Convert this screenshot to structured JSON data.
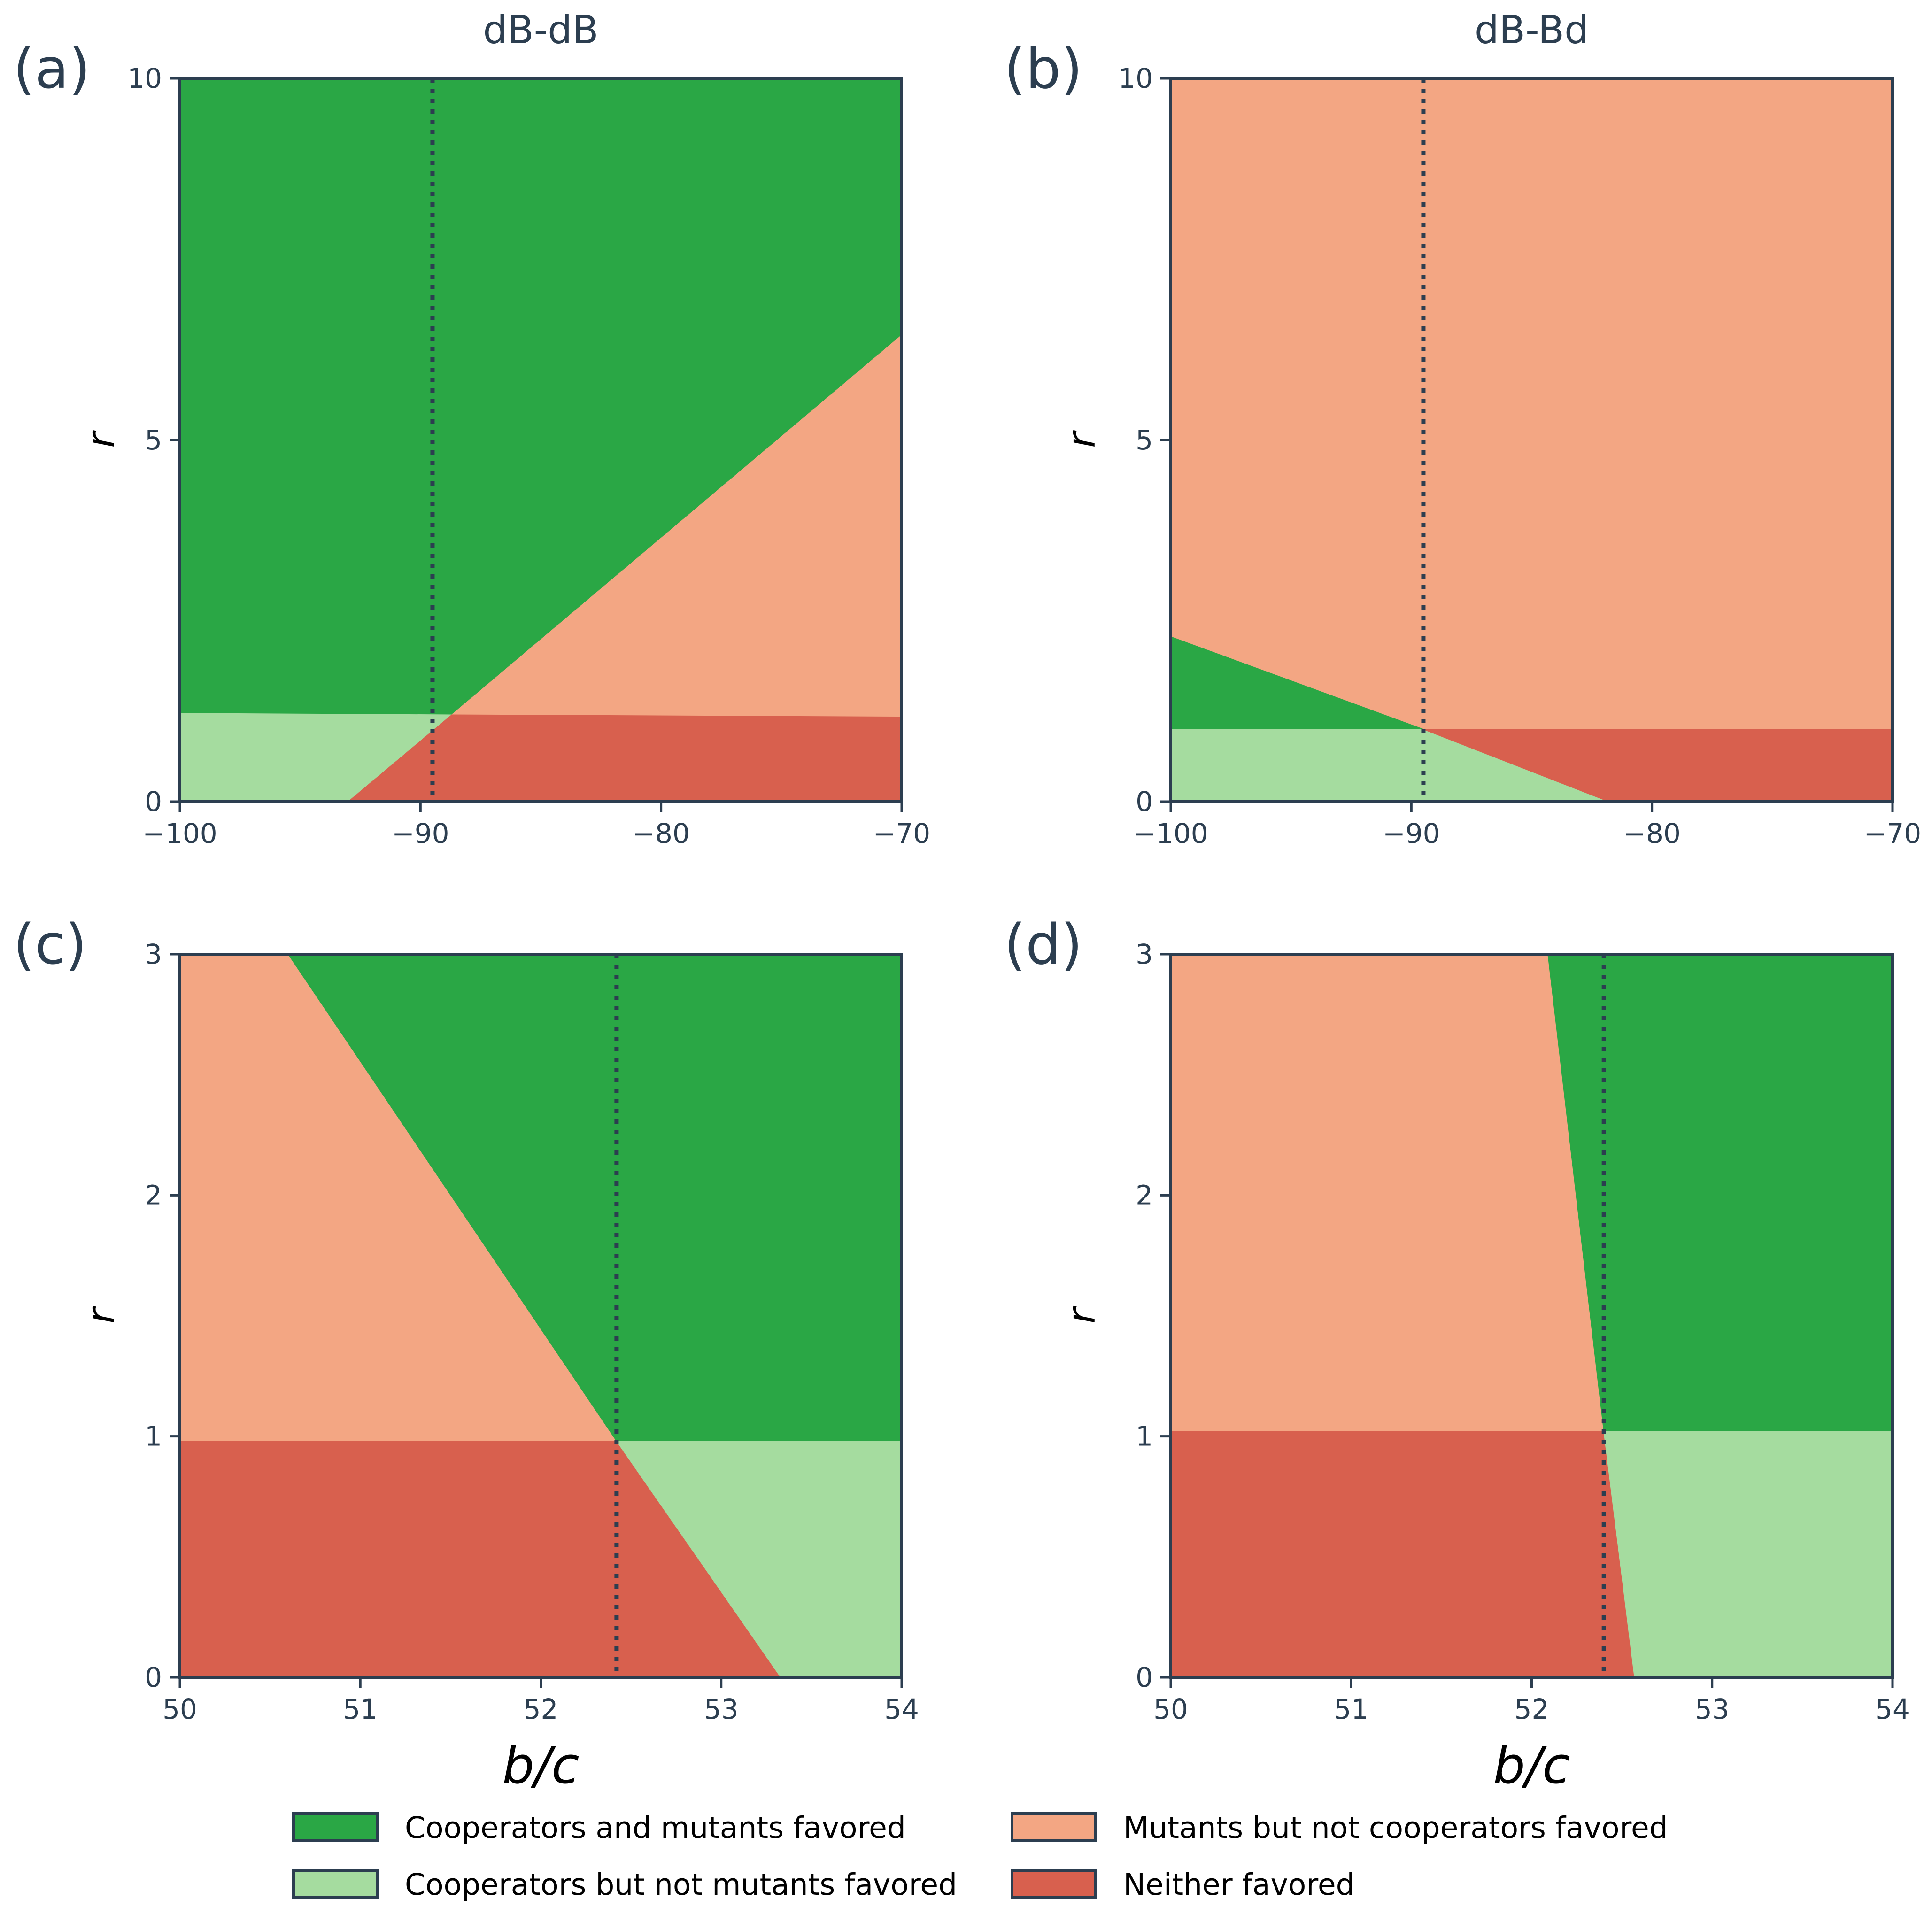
{
  "colors": {
    "both": "#2aa745",
    "coop_only": "#a5dc9f",
    "mut_only": "#f3a683",
    "neither": "#d8604e",
    "axis": "#2c3e50",
    "dotted": "#2c3e50"
  },
  "chart_data": [
    {
      "type": "region",
      "panel_label": "(a)",
      "title": "dB-dB",
      "xlabel": "",
      "ylabel": "r",
      "xlim": [
        -100,
        -70
      ],
      "ylim": [
        0,
        10
      ],
      "xticks": [
        -100,
        -90,
        -80,
        -70
      ],
      "xtick_labels": [
        "−100",
        "−90",
        "−80",
        "−70"
      ],
      "yticks": [
        0,
        5,
        10
      ],
      "ytick_labels": [
        "0",
        "5",
        "10"
      ],
      "vline_x": -89.5,
      "regions": [
        {
          "category": "both",
          "polygon": [
            [
              -100,
              10
            ],
            [
              -70,
              10
            ],
            [
              -70,
              6.45
            ],
            [
              -88.7,
              1.2
            ],
            [
              -100,
              1.22
            ]
          ]
        },
        {
          "category": "mut_only",
          "polygon": [
            [
              -88.7,
              1.2
            ],
            [
              -70,
              6.45
            ],
            [
              -70,
              1.17
            ]
          ]
        },
        {
          "category": "coop_only",
          "polygon": [
            [
              -100,
              1.22
            ],
            [
              -88.7,
              1.2
            ],
            [
              -93,
              0
            ],
            [
              -100,
              0
            ]
          ]
        },
        {
          "category": "neither",
          "polygon": [
            [
              -93,
              0
            ],
            [
              -88.7,
              1.2
            ],
            [
              -70,
              1.17
            ],
            [
              -70,
              0
            ]
          ]
        }
      ]
    },
    {
      "type": "region",
      "panel_label": "(b)",
      "title": "dB-Bd",
      "xlabel": "",
      "ylabel": "r",
      "xlim": [
        -100,
        -70
      ],
      "ylim": [
        0,
        10
      ],
      "xticks": [
        -100,
        -90,
        -80,
        -70
      ],
      "xtick_labels": [
        "−100",
        "−90",
        "−80",
        "−70"
      ],
      "yticks": [
        0,
        5,
        10
      ],
      "ytick_labels": [
        "0",
        "5",
        "10"
      ],
      "vline_x": -89.5,
      "regions": [
        {
          "category": "mut_only",
          "polygon": [
            [
              -100,
              10
            ],
            [
              -70,
              10
            ],
            [
              -70,
              1.0
            ],
            [
              -89.5,
              1.0
            ],
            [
              -100,
              2.28
            ]
          ]
        },
        {
          "category": "both",
          "polygon": [
            [
              -100,
              2.28
            ],
            [
              -89.5,
              1.0
            ],
            [
              -100,
              1.0
            ]
          ]
        },
        {
          "category": "coop_only",
          "polygon": [
            [
              -100,
              1.0
            ],
            [
              -89.5,
              1.0
            ],
            [
              -81.8,
              0
            ],
            [
              -100,
              0
            ]
          ]
        },
        {
          "category": "neither",
          "polygon": [
            [
              -89.5,
              1.0
            ],
            [
              -70,
              1.0
            ],
            [
              -70,
              0
            ],
            [
              -81.8,
              0
            ]
          ]
        }
      ]
    },
    {
      "type": "region",
      "panel_label": "(c)",
      "title": "",
      "xlabel": "b/c",
      "ylabel": "r",
      "xlim": [
        50,
        54
      ],
      "ylim": [
        0,
        3
      ],
      "xticks": [
        50,
        51,
        52,
        53,
        54
      ],
      "xtick_labels": [
        "50",
        "51",
        "52",
        "53",
        "54"
      ],
      "yticks": [
        0,
        1,
        2,
        3
      ],
      "ytick_labels": [
        "0",
        "1",
        "2",
        "3"
      ],
      "vline_x": 52.42,
      "regions": [
        {
          "category": "mut_only",
          "polygon": [
            [
              50,
              3
            ],
            [
              50.6,
              3
            ],
            [
              52.42,
              0.98
            ],
            [
              50,
              0.98
            ]
          ]
        },
        {
          "category": "both",
          "polygon": [
            [
              50.6,
              3
            ],
            [
              54,
              3
            ],
            [
              54,
              0.98
            ],
            [
              52.42,
              0.98
            ]
          ]
        },
        {
          "category": "neither",
          "polygon": [
            [
              50,
              0.98
            ],
            [
              52.42,
              0.98
            ],
            [
              53.33,
              0
            ],
            [
              50,
              0
            ]
          ]
        },
        {
          "category": "coop_only",
          "polygon": [
            [
              52.42,
              0.98
            ],
            [
              54,
              0.98
            ],
            [
              54,
              0
            ],
            [
              53.33,
              0
            ]
          ]
        }
      ]
    },
    {
      "type": "region",
      "panel_label": "(d)",
      "title": "",
      "xlabel": "b/c",
      "ylabel": "r",
      "xlim": [
        50,
        54
      ],
      "ylim": [
        0,
        3
      ],
      "xticks": [
        50,
        51,
        52,
        53,
        54
      ],
      "xtick_labels": [
        "50",
        "51",
        "52",
        "53",
        "54"
      ],
      "yticks": [
        0,
        1,
        2,
        3
      ],
      "ytick_labels": [
        "0",
        "1",
        "2",
        "3"
      ],
      "vline_x": 52.4,
      "regions": [
        {
          "category": "mut_only",
          "polygon": [
            [
              50,
              3
            ],
            [
              52.09,
              3
            ],
            [
              52.4,
              1.02
            ],
            [
              50,
              1.02
            ]
          ]
        },
        {
          "category": "both",
          "polygon": [
            [
              52.09,
              3
            ],
            [
              54,
              3
            ],
            [
              54,
              1.02
            ],
            [
              52.4,
              1.02
            ]
          ]
        },
        {
          "category": "neither",
          "polygon": [
            [
              50,
              1.02
            ],
            [
              52.4,
              1.02
            ],
            [
              52.57,
              0
            ],
            [
              50,
              0
            ]
          ]
        },
        {
          "category": "coop_only",
          "polygon": [
            [
              52.4,
              1.02
            ],
            [
              54,
              1.02
            ],
            [
              54,
              0
            ],
            [
              52.57,
              0
            ]
          ]
        }
      ]
    }
  ],
  "legend": [
    {
      "key": "both",
      "label": "Cooperators and mutants favored"
    },
    {
      "key": "mut_only",
      "label": "Mutants but not cooperators favored"
    },
    {
      "key": "coop_only",
      "label": "Cooperators but not mutants favored"
    },
    {
      "key": "neither",
      "label": "Neither favored"
    }
  ]
}
